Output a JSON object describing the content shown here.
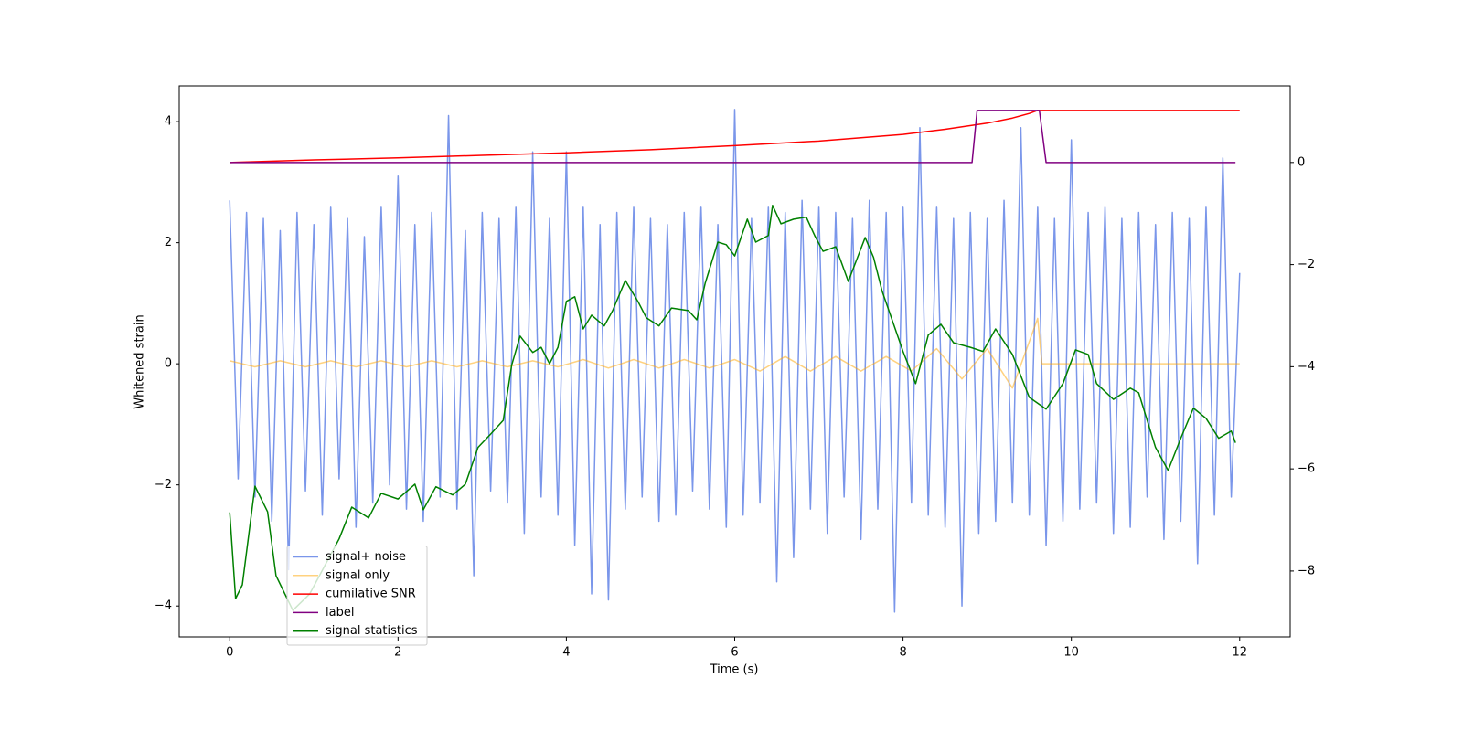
{
  "chart_data": {
    "type": "line",
    "xlabel": "Time (s)",
    "ylabel": "Whitened strain",
    "xlim": [
      -0.6,
      12.6
    ],
    "ylim": [
      -4.51,
      4.59
    ],
    "y2lim": [
      -9.29,
      1.5
    ],
    "xticks": [
      0,
      2,
      4,
      6,
      8,
      10,
      12
    ],
    "yticks": [
      {
        "value": -4,
        "label": "−4"
      },
      {
        "value": -2,
        "label": "−2"
      },
      0,
      2,
      4
    ],
    "y2ticks": [
      {
        "value": -8,
        "label": "−8"
      },
      {
        "value": -6,
        "label": "−6"
      },
      {
        "value": -4,
        "label": "−4"
      },
      {
        "value": -2,
        "label": "−2"
      },
      0
    ],
    "legend": "lower left",
    "series": [
      {
        "name": "signal+ noise",
        "color": "royalblue",
        "alpha": 0.7,
        "axis": "y",
        "x": [
          0,
          0.1,
          0.2,
          0.3,
          0.4,
          0.5,
          0.6,
          0.7,
          0.8,
          0.9,
          1,
          1.1,
          1.2,
          1.3,
          1.4,
          1.5,
          1.6,
          1.7,
          1.8,
          1.9,
          2,
          2.1,
          2.2,
          2.3,
          2.4,
          2.5,
          2.6,
          2.7,
          2.8,
          2.9,
          3,
          3.1,
          3.2,
          3.3,
          3.4,
          3.5,
          3.6,
          3.7,
          3.8,
          3.9,
          4,
          4.1,
          4.2,
          4.3,
          4.4,
          4.5,
          4.6,
          4.7,
          4.8,
          4.9,
          5,
          5.1,
          5.2,
          5.3,
          5.4,
          5.5,
          5.6,
          5.7,
          5.8,
          5.9,
          6,
          6.1,
          6.2,
          6.3,
          6.4,
          6.5,
          6.6,
          6.7,
          6.8,
          6.9,
          7,
          7.1,
          7.2,
          7.3,
          7.4,
          7.5,
          7.6,
          7.7,
          7.8,
          7.9,
          8,
          8.1,
          8.2,
          8.3,
          8.4,
          8.5,
          8.6,
          8.7,
          8.8,
          8.9,
          9,
          9.1,
          9.2,
          9.3,
          9.4,
          9.5,
          9.6,
          9.7,
          9.8,
          9.9,
          10,
          10.1,
          10.2,
          10.3,
          10.4,
          10.5,
          10.6,
          10.7,
          10.8,
          10.9,
          11,
          11.1,
          11.2,
          11.3,
          11.4,
          11.5,
          11.6,
          11.7,
          11.8,
          11.9,
          12
        ],
        "values": [
          2.7,
          -1.9,
          2.5,
          -2.2,
          2.4,
          -2.6,
          2.2,
          -3.4,
          2.5,
          -2.1,
          2.3,
          -2.5,
          2.6,
          -1.9,
          2.4,
          -2.7,
          2.1,
          -2.3,
          2.6,
          -2.0,
          3.1,
          -2.4,
          2.3,
          -2.6,
          2.5,
          -2.2,
          4.1,
          -2.4,
          2.2,
          -3.5,
          2.5,
          -2.1,
          2.4,
          -2.3,
          2.6,
          -2.8,
          3.5,
          -2.2,
          2.4,
          -2.5,
          3.5,
          -3.0,
          2.6,
          -3.8,
          2.3,
          -3.9,
          2.5,
          -2.4,
          2.6,
          -2.2,
          2.4,
          -2.6,
          2.3,
          -2.5,
          2.5,
          -2.1,
          2.6,
          -2.4,
          2.3,
          -2.7,
          4.2,
          -2.5,
          2.4,
          -2.3,
          2.6,
          -3.6,
          2.5,
          -3.2,
          2.7,
          -2.4,
          2.6,
          -2.8,
          2.5,
          -2.2,
          2.4,
          -2.9,
          2.7,
          -2.4,
          2.5,
          -4.1,
          2.6,
          -2.3,
          3.9,
          -2.5,
          2.6,
          -2.7,
          2.4,
          -4.0,
          2.5,
          -2.8,
          2.4,
          -2.6,
          2.7,
          -2.3,
          3.9,
          -2.5,
          2.6,
          -3.0,
          2.4,
          -2.6,
          3.7,
          -2.4,
          2.5,
          -2.3,
          2.6,
          -2.8,
          2.4,
          -2.7,
          2.5,
          -2.2,
          2.3,
          -2.9,
          2.5,
          -2.6,
          2.4,
          -3.3,
          2.6,
          -2.5,
          3.4,
          -2.2,
          1.5
        ]
      },
      {
        "name": "signal only",
        "color": "orange",
        "alpha": 0.5,
        "axis": "y",
        "x": [
          0,
          0.3,
          0.6,
          0.9,
          1.2,
          1.5,
          1.8,
          2.1,
          2.4,
          2.7,
          3,
          3.3,
          3.6,
          3.9,
          4.2,
          4.5,
          4.8,
          5.1,
          5.4,
          5.7,
          6,
          6.3,
          6.6,
          6.9,
          7.2,
          7.5,
          7.8,
          8.1,
          8.4,
          8.7,
          9,
          9.3,
          9.6,
          9.65,
          12
        ],
        "values": [
          0.05,
          -0.05,
          0.05,
          -0.05,
          0.05,
          -0.05,
          0.05,
          -0.05,
          0.05,
          -0.05,
          0.05,
          -0.05,
          0.05,
          -0.05,
          0.07,
          -0.07,
          0.07,
          -0.07,
          0.07,
          -0.07,
          0.07,
          -0.12,
          0.12,
          -0.12,
          0.12,
          -0.12,
          0.12,
          -0.12,
          0.25,
          -0.25,
          0.25,
          -0.4,
          0.75,
          0,
          0
        ]
      },
      {
        "name": "cumilative SNR",
        "color": "red",
        "axis": "y2",
        "x": [
          0,
          1,
          2,
          3,
          4,
          5,
          6,
          7,
          8,
          8.5,
          9,
          9.3,
          9.5,
          9.6,
          9.7,
          12
        ],
        "values": [
          0,
          0.05,
          0.09,
          0.14,
          0.19,
          0.25,
          0.33,
          0.42,
          0.55,
          0.65,
          0.77,
          0.87,
          0.96,
          1.02,
          1.02,
          1.02
        ]
      },
      {
        "name": "label",
        "color": "purple",
        "axis": "y2",
        "x": [
          0,
          8.82,
          8.88,
          9.62,
          9.7,
          11.95
        ],
        "values": [
          0,
          0,
          1.02,
          1.02,
          0,
          0
        ]
      },
      {
        "name": "signal statistics",
        "color": "green",
        "axis": "y2",
        "x": [
          0,
          0.07,
          0.15,
          0.3,
          0.45,
          0.55,
          0.75,
          0.95,
          1.3,
          1.45,
          1.65,
          1.8,
          2,
          2.2,
          2.3,
          2.45,
          2.65,
          2.8,
          2.95,
          3.1,
          3.25,
          3.35,
          3.45,
          3.6,
          3.7,
          3.8,
          3.9,
          4,
          4.1,
          4.2,
          4.3,
          4.45,
          4.55,
          4.7,
          4.85,
          4.95,
          5.1,
          5.25,
          5.45,
          5.55,
          5.65,
          5.8,
          5.9,
          6,
          6.15,
          6.25,
          6.4,
          6.45,
          6.55,
          6.7,
          6.85,
          6.95,
          7.05,
          7.2,
          7.35,
          7.55,
          7.65,
          7.75,
          8,
          8.15,
          8.3,
          8.45,
          8.6,
          8.8,
          8.95,
          9.1,
          9.3,
          9.5,
          9.7,
          9.9,
          10.05,
          10.2,
          10.3,
          10.5,
          10.7,
          10.8,
          11,
          11.15,
          11.3,
          11.45,
          11.6,
          11.75,
          11.9,
          11.95
        ],
        "values": [
          -6.85,
          -8.54,
          -8.27,
          -6.34,
          -6.84,
          -8.09,
          -8.77,
          -8.45,
          -7.37,
          -6.75,
          -6.96,
          -6.48,
          -6.59,
          -6.3,
          -6.8,
          -6.35,
          -6.51,
          -6.3,
          -5.58,
          -5.32,
          -5.05,
          -3.97,
          -3.4,
          -3.72,
          -3.62,
          -3.94,
          -3.62,
          -2.72,
          -2.63,
          -3.26,
          -2.99,
          -3.2,
          -2.9,
          -2.31,
          -2.72,
          -3.04,
          -3.2,
          -2.85,
          -2.9,
          -3.08,
          -2.36,
          -1.56,
          -1.61,
          -1.83,
          -1.11,
          -1.56,
          -1.43,
          -0.84,
          -1.2,
          -1.11,
          -1.07,
          -1.43,
          -1.74,
          -1.65,
          -2.33,
          -1.47,
          -1.86,
          -2.51,
          -3.7,
          -4.33,
          -3.38,
          -3.17,
          -3.53,
          -3.62,
          -3.7,
          -3.26,
          -3.76,
          -4.6,
          -4.83,
          -4.33,
          -3.67,
          -3.76,
          -4.33,
          -4.64,
          -4.42,
          -4.51,
          -5.58,
          -6.03,
          -5.4,
          -4.81,
          -5.01,
          -5.4,
          -5.26,
          -5.49
        ]
      }
    ]
  }
}
